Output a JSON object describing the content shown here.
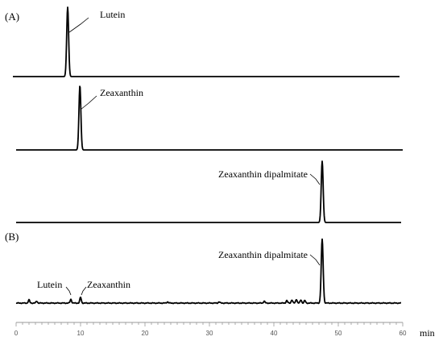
{
  "chart_data": {
    "type": "line",
    "x_axis": {
      "label": "min",
      "range": [
        0,
        60
      ],
      "ticks": [
        0,
        10,
        20,
        30,
        40,
        50,
        60
      ]
    },
    "panels": [
      {
        "label": "(A)",
        "traces": [
          {
            "peaks": [
              {
                "time": 8.0,
                "relative_height": 1.0,
                "label": "Lutein"
              }
            ]
          },
          {
            "peaks": [
              {
                "time": 9.9,
                "relative_height": 1.0,
                "label": "Zeaxanthin"
              }
            ]
          },
          {
            "peaks": [
              {
                "time": 47.5,
                "relative_height": 1.0,
                "label": "Zeaxanthin dipalmitate"
              }
            ]
          }
        ]
      },
      {
        "label": "(B)",
        "traces": [
          {
            "peaks": [
              {
                "time": 2.0,
                "relative_height": 0.05
              },
              {
                "time": 3.2,
                "relative_height": 0.03
              },
              {
                "time": 8.5,
                "relative_height": 0.06,
                "label": "Lutein"
              },
              {
                "time": 10.0,
                "relative_height": 0.09,
                "label": "Zeaxanthin"
              },
              {
                "time": 23.5,
                "relative_height": 0.02
              },
              {
                "time": 31.5,
                "relative_height": 0.02
              },
              {
                "time": 38.5,
                "relative_height": 0.03
              },
              {
                "time": 42.0,
                "relative_height": 0.04
              },
              {
                "time": 42.8,
                "relative_height": 0.05
              },
              {
                "time": 43.5,
                "relative_height": 0.06
              },
              {
                "time": 44.2,
                "relative_height": 0.05
              },
              {
                "time": 44.8,
                "relative_height": 0.04
              },
              {
                "time": 47.5,
                "relative_height": 1.0,
                "label": "Zeaxanthin dipalmitate"
              }
            ]
          }
        ]
      }
    ]
  }
}
